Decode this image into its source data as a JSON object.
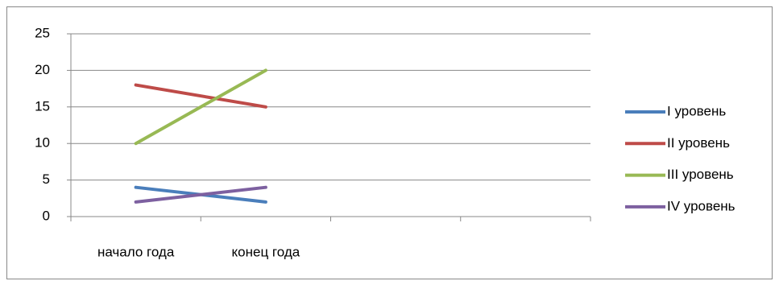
{
  "chart_data": {
    "type": "line",
    "categories": [
      "начало года",
      "конец года",
      null,
      null
    ],
    "series": [
      {
        "name": "I уровень",
        "color": "#4a7ebb",
        "values": [
          4,
          2,
          null,
          null
        ]
      },
      {
        "name": "II уровень",
        "color": "#be4b48",
        "values": [
          18,
          15,
          null,
          null
        ]
      },
      {
        "name": "III уровень",
        "color": "#98b954",
        "values": [
          10,
          20,
          null,
          null
        ]
      },
      {
        "name": "IV уровень",
        "color": "#7d60a0",
        "values": [
          2,
          4,
          null,
          null
        ]
      }
    ],
    "ylim": [
      0,
      25
    ],
    "yticks": [
      0,
      5,
      10,
      15,
      20,
      25
    ],
    "grid": true,
    "legend": "right"
  }
}
